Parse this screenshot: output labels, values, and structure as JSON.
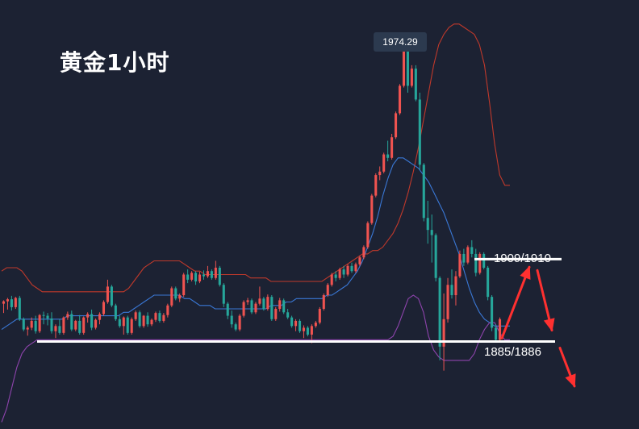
{
  "title": "黄金1小时",
  "chart_data": {
    "type": "candlestick",
    "title": "黄金1小时",
    "peak_label": "1974.29",
    "y_range": [
      1860,
      1985
    ],
    "levels": [
      {
        "name": "resistance",
        "label": "1909/1910",
        "value": 1909.5
      },
      {
        "name": "support",
        "label": "1885/1886",
        "value": 1885.5
      }
    ],
    "colors": {
      "up": "#ef5350",
      "down": "#26a69a",
      "upper_band": "#c0392b",
      "middle_band": "#3a78d6",
      "lower_band": "#8e44ad",
      "level_line": "#ffffff",
      "arrow": "#ff3030"
    },
    "candles": [
      [
        1896.5,
        1897.5,
        1893.8,
        1897.2
      ],
      [
        1897.2,
        1898.2,
        1894.8,
        1897.8
      ],
      [
        1897.8,
        1898.8,
        1894.5,
        1895.5
      ],
      [
        1895.5,
        1898.5,
        1895.0,
        1898.2
      ],
      [
        1898.2,
        1898.8,
        1891.5,
        1892.0
      ],
      [
        1892.0,
        1892.5,
        1888.5,
        1889.0
      ],
      [
        1889.0,
        1890.0,
        1887.2,
        1889.5
      ],
      [
        1889.5,
        1892.5,
        1888.8,
        1891.5
      ],
      [
        1891.5,
        1893.0,
        1887.8,
        1888.5
      ],
      [
        1888.5,
        1893.5,
        1888.0,
        1893.2
      ],
      [
        1893.2,
        1894.2,
        1890.5,
        1893.0
      ],
      [
        1893.0,
        1893.8,
        1890.2,
        1892.2
      ],
      [
        1892.2,
        1894.0,
        1887.8,
        1888.5
      ],
      [
        1888.5,
        1890.5,
        1886.5,
        1890.0
      ],
      [
        1890.0,
        1892.0,
        1887.5,
        1888.0
      ],
      [
        1888.0,
        1892.8,
        1887.5,
        1892.5
      ],
      [
        1892.5,
        1894.2,
        1891.8,
        1893.5
      ],
      [
        1893.5,
        1894.5,
        1888.5,
        1889.0
      ],
      [
        1889.0,
        1891.8,
        1888.5,
        1891.5
      ],
      [
        1891.5,
        1893.2,
        1887.5,
        1888.0
      ],
      [
        1888.0,
        1892.8,
        1887.5,
        1892.5
      ],
      [
        1892.5,
        1894.0,
        1891.0,
        1893.5
      ],
      [
        1893.5,
        1894.8,
        1888.8,
        1889.5
      ],
      [
        1889.5,
        1892.2,
        1889.0,
        1891.8
      ],
      [
        1891.8,
        1894.0,
        1890.5,
        1893.5
      ],
      [
        1893.5,
        1897.5,
        1893.0,
        1897.0
      ],
      [
        1897.0,
        1903.5,
        1896.5,
        1901.5
      ],
      [
        1901.5,
        1902.0,
        1895.5,
        1896.0
      ],
      [
        1896.0,
        1896.5,
        1891.5,
        1892.0
      ],
      [
        1892.0,
        1893.0,
        1889.5,
        1890.0
      ],
      [
        1890.0,
        1892.8,
        1887.5,
        1892.5
      ],
      [
        1892.5,
        1893.0,
        1887.5,
        1888.0
      ],
      [
        1888.0,
        1892.5,
        1887.5,
        1892.0
      ],
      [
        1892.0,
        1894.5,
        1891.5,
        1894.0
      ],
      [
        1894.0,
        1894.5,
        1889.5,
        1890.0
      ],
      [
        1890.0,
        1893.2,
        1889.5,
        1893.0
      ],
      [
        1893.0,
        1894.0,
        1889.8,
        1890.5
      ],
      [
        1890.5,
        1892.2,
        1890.0,
        1891.8
      ],
      [
        1891.8,
        1894.2,
        1891.2,
        1893.8
      ],
      [
        1893.8,
        1894.5,
        1891.0,
        1891.5
      ],
      [
        1891.5,
        1893.8,
        1891.0,
        1893.2
      ],
      [
        1893.2,
        1896.5,
        1892.5,
        1896.0
      ],
      [
        1896.0,
        1901.5,
        1895.5,
        1901.0
      ],
      [
        1901.0,
        1901.5,
        1897.5,
        1898.0
      ],
      [
        1898.0,
        1899.5,
        1897.0,
        1899.0
      ],
      [
        1899.0,
        1905.5,
        1898.5,
        1905.0
      ],
      [
        1905.0,
        1906.5,
        1902.5,
        1903.5
      ],
      [
        1903.5,
        1906.0,
        1903.0,
        1905.5
      ],
      [
        1905.5,
        1906.0,
        1902.0,
        1903.0
      ],
      [
        1903.0,
        1905.8,
        1902.5,
        1905.0
      ],
      [
        1905.0,
        1906.2,
        1903.5,
        1904.5
      ],
      [
        1904.5,
        1907.5,
        1904.0,
        1906.0
      ],
      [
        1906.0,
        1906.5,
        1903.5,
        1904.0
      ],
      [
        1904.0,
        1909.0,
        1903.5,
        1907.0
      ],
      [
        1907.0,
        1907.5,
        1901.5,
        1902.0
      ],
      [
        1902.0,
        1902.5,
        1895.5,
        1896.5
      ],
      [
        1896.5,
        1897.0,
        1892.0,
        1893.0
      ],
      [
        1893.0,
        1894.5,
        1889.5,
        1890.5
      ],
      [
        1890.5,
        1891.0,
        1888.5,
        1889.0
      ],
      [
        1889.0,
        1893.5,
        1888.5,
        1893.0
      ],
      [
        1893.0,
        1897.5,
        1892.5,
        1897.0
      ],
      [
        1897.0,
        1898.2,
        1896.2,
        1897.5
      ],
      [
        1897.5,
        1898.0,
        1893.5,
        1894.0
      ],
      [
        1894.0,
        1897.0,
        1893.5,
        1896.5
      ],
      [
        1896.5,
        1901.5,
        1896.0,
        1898.0
      ],
      [
        1898.0,
        1898.5,
        1894.5,
        1895.0
      ],
      [
        1895.0,
        1899.2,
        1894.5,
        1898.5
      ],
      [
        1898.5,
        1899.0,
        1891.5,
        1892.0
      ],
      [
        1892.0,
        1895.5,
        1891.5,
        1895.0
      ],
      [
        1895.0,
        1898.2,
        1894.2,
        1897.5
      ],
      [
        1897.5,
        1898.0,
        1893.5,
        1894.0
      ],
      [
        1894.0,
        1895.0,
        1892.0,
        1892.5
      ],
      [
        1892.5,
        1893.0,
        1889.5,
        1890.0
      ],
      [
        1890.0,
        1892.0,
        1888.5,
        1891.5
      ],
      [
        1891.5,
        1892.0,
        1888.0,
        1888.5
      ],
      [
        1888.5,
        1890.2,
        1886.5,
        1889.5
      ],
      [
        1889.5,
        1890.0,
        1887.0,
        1887.5
      ],
      [
        1887.5,
        1890.5,
        1885.0,
        1890.0
      ],
      [
        1890.0,
        1891.5,
        1889.5,
        1891.0
      ],
      [
        1891.0,
        1895.5,
        1890.5,
        1895.0
      ],
      [
        1895.0,
        1899.5,
        1894.5,
        1899.0
      ],
      [
        1899.0,
        1902.5,
        1898.5,
        1902.0
      ],
      [
        1902.0,
        1905.5,
        1901.5,
        1905.0
      ],
      [
        1905.0,
        1906.0,
        1903.0,
        1904.0
      ],
      [
        1904.0,
        1907.0,
        1903.5,
        1906.5
      ],
      [
        1906.5,
        1907.5,
        1904.0,
        1905.0
      ],
      [
        1905.0,
        1908.0,
        1904.5,
        1907.5
      ],
      [
        1907.5,
        1908.5,
        1905.5,
        1906.0
      ],
      [
        1906.0,
        1908.5,
        1905.5,
        1908.0
      ],
      [
        1908.0,
        1910.5,
        1907.5,
        1910.0
      ],
      [
        1910.0,
        1913.5,
        1909.5,
        1913.0
      ],
      [
        1913.0,
        1920.5,
        1912.5,
        1920.0
      ],
      [
        1920.0,
        1928.5,
        1919.5,
        1928.0
      ],
      [
        1928.0,
        1934.5,
        1927.5,
        1934.0
      ],
      [
        1934.0,
        1936.5,
        1932.5,
        1935.0
      ],
      [
        1935.0,
        1940.5,
        1934.5,
        1940.0
      ],
      [
        1940.0,
        1944.0,
        1938.0,
        1939.0
      ],
      [
        1939.0,
        1946.0,
        1938.5,
        1945.0
      ],
      [
        1945.0,
        1952.5,
        1944.5,
        1952.0
      ],
      [
        1952.0,
        1960.5,
        1951.5,
        1960.0
      ],
      [
        1960.0,
        1973.5,
        1959.5,
        1973.0
      ],
      [
        1973.0,
        1974.29,
        1958.0,
        1960.0
      ],
      [
        1960.0,
        1966.0,
        1959.5,
        1965.0
      ],
      [
        1965.0,
        1966.0,
        1955.5,
        1956.0
      ],
      [
        1956.0,
        1958.0,
        1935.5,
        1937.0
      ],
      [
        1937.0,
        1937.5,
        1920.5,
        1921.5
      ],
      [
        1921.5,
        1926.5,
        1914.0,
        1918.0
      ],
      [
        1918.0,
        1922.5,
        1908.5,
        1916.5
      ],
      [
        1916.5,
        1917.0,
        1903.0,
        1904.0
      ],
      [
        1904.0,
        1904.5,
        1880.0,
        1884.0
      ],
      [
        1884.0,
        1899.5,
        1877.0,
        1892.0
      ],
      [
        1892.0,
        1904.0,
        1891.0,
        1902.0
      ],
      [
        1902.0,
        1906.5,
        1898.0,
        1899.0
      ],
      [
        1899.0,
        1906.0,
        1896.0,
        1904.5
      ],
      [
        1904.5,
        1912.0,
        1904.0,
        1911.0
      ],
      [
        1911.0,
        1912.5,
        1907.5,
        1908.5
      ],
      [
        1908.5,
        1913.5,
        1908.0,
        1913.0
      ],
      [
        1913.0,
        1915.0,
        1910.0,
        1911.0
      ],
      [
        1911.0,
        1912.5,
        1904.5,
        1905.5
      ],
      [
        1905.5,
        1911.5,
        1905.0,
        1911.0
      ],
      [
        1911.0,
        1911.5,
        1906.5,
        1907.0
      ],
      [
        1907.0,
        1907.5,
        1897.5,
        1898.5
      ],
      [
        1898.5,
        1899.0,
        1888.5,
        1889.5
      ],
      [
        1889.5,
        1890.5,
        1885.5,
        1886.0
      ],
      [
        1886.0,
        1892.5,
        1885.5,
        1892.0
      ]
    ],
    "upper_band": [
      1906,
      1907,
      1907,
      1907,
      1906,
      1904,
      1902,
      1901,
      1900,
      1900,
      1900,
      1900,
      1900,
      1900,
      1900,
      1900,
      1900,
      1900,
      1900,
      1900,
      1900,
      1900,
      1900,
      1900,
      1900,
      1901,
      1903,
      1905,
      1907,
      1908,
      1909,
      1909,
      1909,
      1909,
      1909,
      1909,
      1908,
      1907,
      1906,
      1906,
      1905,
      1905,
      1905,
      1905,
      1905,
      1905,
      1905,
      1905,
      1905,
      1904,
      1904,
      1904,
      1904,
      1903,
      1903,
      1903,
      1903,
      1903,
      1903,
      1903,
      1903,
      1903,
      1903,
      1903,
      1904,
      1905,
      1906,
      1907,
      1908,
      1909,
      1910,
      1911,
      1911,
      1912,
      1912,
      1913,
      1915,
      1917,
      1920,
      1924,
      1929,
      1935,
      1942,
      1950,
      1958,
      1966,
      1972,
      1975,
      1977,
      1978,
      1978,
      1977,
      1976,
      1975,
      1972,
      1966,
      1955,
      1943,
      1934,
      1931,
      1931
    ],
    "middle_band": [
      1889,
      1890,
      1891,
      1892,
      1892,
      1892,
      1892,
      1892,
      1892,
      1892,
      1892,
      1892,
      1892,
      1893,
      1893,
      1893,
      1893,
      1893,
      1893,
      1893,
      1893,
      1893,
      1893,
      1893,
      1894,
      1894,
      1895,
      1896,
      1897,
      1898,
      1899,
      1899,
      1899,
      1899,
      1899,
      1899,
      1898,
      1898,
      1897,
      1896,
      1896,
      1896,
      1895,
      1895,
      1895,
      1895,
      1895,
      1895,
      1895,
      1895,
      1895,
      1895,
      1895,
      1896,
      1896,
      1896,
      1897,
      1897,
      1898,
      1898,
      1898,
      1898,
      1898,
      1898,
      1899,
      1899,
      1900,
      1901,
      1902,
      1904,
      1906,
      1909,
      1913,
      1917,
      1922,
      1928,
      1933,
      1937,
      1939,
      1939,
      1938,
      1937,
      1936,
      1934,
      1932,
      1929,
      1926,
      1923,
      1919,
      1915,
      1911,
      1906,
      1901,
      1897,
      1894,
      1892,
      1891,
      1890,
      1890,
      1890,
      1890
    ],
    "lower_band": [
      1862,
      1866,
      1872,
      1878,
      1882,
      1884,
      1885,
      1886,
      1886,
      1886,
      1886,
      1886,
      1886,
      1886,
      1886,
      1886,
      1886,
      1886,
      1886,
      1886,
      1886,
      1886,
      1886,
      1886,
      1886,
      1886,
      1886,
      1886,
      1886,
      1886,
      1886,
      1886,
      1886,
      1886,
      1886,
      1886,
      1886,
      1886,
      1886,
      1886,
      1886,
      1886,
      1886,
      1886,
      1886,
      1886,
      1886,
      1886,
      1886,
      1886,
      1886,
      1886,
      1886,
      1886,
      1886,
      1886,
      1886,
      1886,
      1886,
      1886,
      1886,
      1886,
      1886,
      1886,
      1886,
      1886,
      1886,
      1886,
      1886,
      1886,
      1886,
      1886,
      1886,
      1886,
      1886,
      1886,
      1886,
      1887,
      1890,
      1894,
      1898,
      1899,
      1898,
      1894,
      1887,
      1883,
      1881,
      1880,
      1880,
      1880,
      1880,
      1880,
      1880,
      1882,
      1886,
      1889,
      1891,
      1891,
      1888,
      1886,
      1886
    ]
  }
}
